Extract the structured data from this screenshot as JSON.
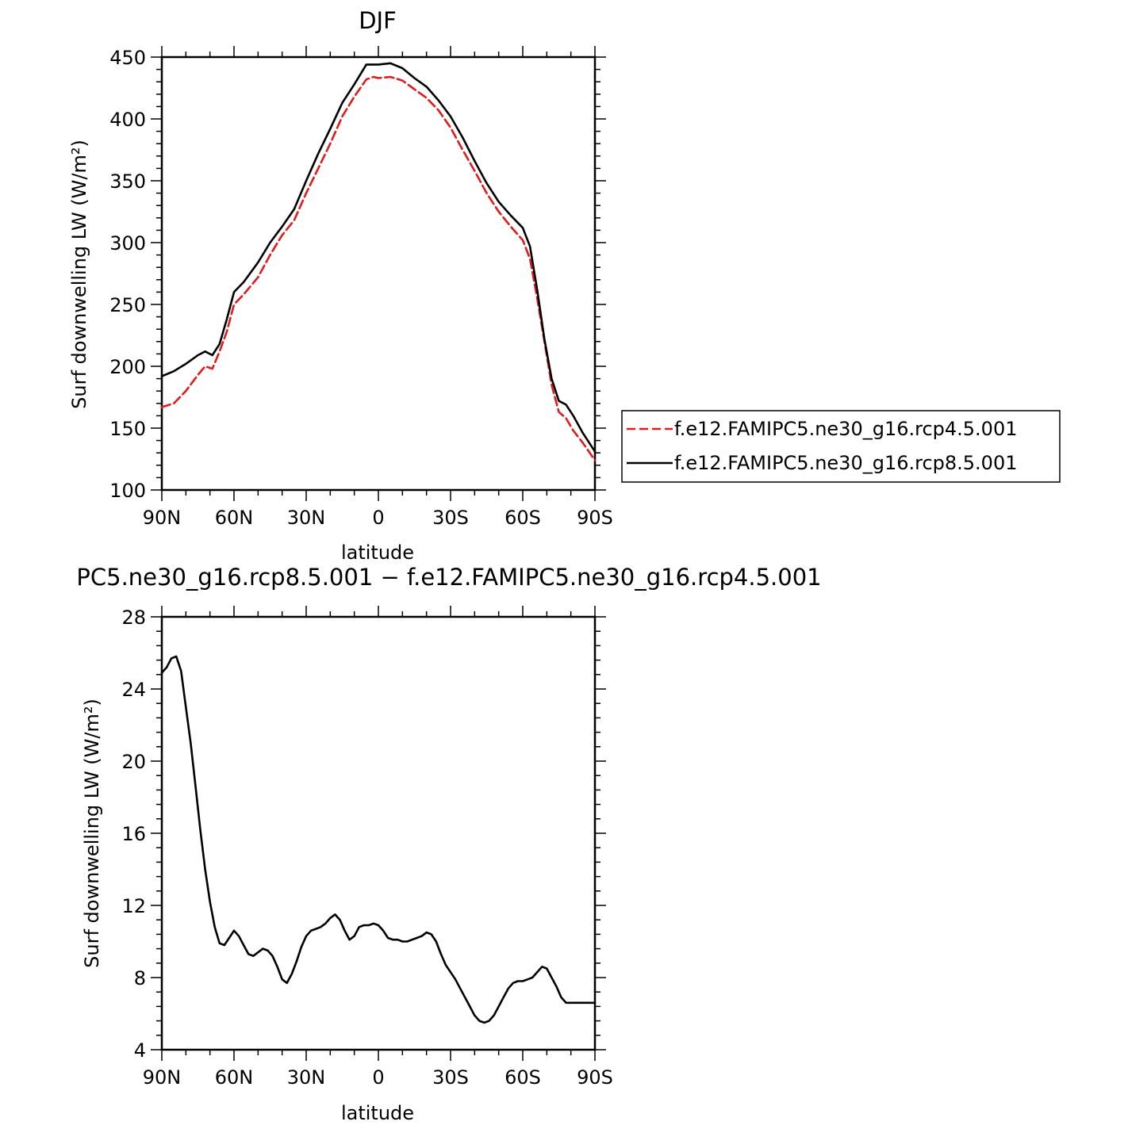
{
  "chart_data": [
    {
      "type": "line",
      "title": "DJF",
      "xlabel": "latitude",
      "ylabel": "Surf downwelling LW (W/m²)",
      "ylim": [
        100,
        450
      ],
      "yticks": [
        "100",
        "150",
        "200",
        "250",
        "300",
        "350",
        "400",
        "450"
      ],
      "xlim": [
        90,
        -90
      ],
      "xticks": [
        {
          "value": 90,
          "label": "90N"
        },
        {
          "value": 60,
          "label": "60N"
        },
        {
          "value": 30,
          "label": "30N"
        },
        {
          "value": 0,
          "label": "0"
        },
        {
          "value": -30,
          "label": "30S"
        },
        {
          "value": -60,
          "label": "60S"
        },
        {
          "value": -90,
          "label": "90S"
        }
      ],
      "legend": "right",
      "series": [
        {
          "name": "f.e12.FAMIPC5.ne30_g16.rcp4.5.001",
          "color": "#e31a1c",
          "dash": "dashed",
          "x": [
            90,
            85,
            80,
            75,
            72,
            69,
            66,
            63,
            60,
            56,
            50,
            45,
            40,
            35,
            30,
            25,
            20,
            15,
            10,
            5,
            2,
            0,
            -5,
            -10,
            -15,
            -20,
            -25,
            -30,
            -35,
            -40,
            -45,
            -50,
            -55,
            -60,
            -63,
            -66,
            -69,
            -72,
            -75,
            -78,
            -81,
            -85,
            -90
          ],
          "y": [
            167,
            170,
            180,
            193,
            200,
            198,
            212,
            228,
            250,
            258,
            272,
            290,
            306,
            318,
            340,
            360,
            380,
            402,
            418,
            432,
            434,
            433,
            434,
            431,
            424,
            417,
            407,
            393,
            375,
            358,
            340,
            325,
            313,
            302,
            287,
            255,
            220,
            185,
            163,
            158,
            148,
            138,
            124
          ]
        },
        {
          "name": "f.e12.FAMIPC5.ne30_g16.rcp8.5.001",
          "color": "#000000",
          "dash": "solid",
          "x": [
            90,
            85,
            80,
            75,
            72,
            69,
            66,
            63,
            60,
            56,
            50,
            45,
            40,
            35,
            30,
            25,
            20,
            15,
            10,
            5,
            2,
            0,
            -5,
            -10,
            -15,
            -20,
            -25,
            -30,
            -35,
            -40,
            -45,
            -50,
            -55,
            -60,
            -63,
            -66,
            -69,
            -72,
            -75,
            -78,
            -81,
            -85,
            -90
          ],
          "y": [
            192,
            196,
            202,
            209,
            212,
            209,
            218,
            238,
            260,
            268,
            284,
            300,
            313,
            327,
            350,
            372,
            392,
            413,
            428,
            444,
            444,
            444,
            445,
            441,
            433,
            426,
            415,
            402,
            385,
            366,
            348,
            333,
            322,
            312,
            297,
            262,
            222,
            190,
            172,
            169,
            160,
            146,
            131
          ]
        }
      ]
    },
    {
      "type": "line",
      "title": "PC5.ne30_g16.rcp8.5.001 − f.e12.FAMIPC5.ne30_g16.rcp4.5.001",
      "xlabel": "latitude",
      "ylabel": "Surf downwelling LW (W/m²)",
      "ylim": [
        4,
        28
      ],
      "yticks": [
        "4",
        "8",
        "12",
        "16",
        "20",
        "24",
        "28"
      ],
      "xlim": [
        90,
        -90
      ],
      "xticks": [
        {
          "value": 90,
          "label": "90N"
        },
        {
          "value": 60,
          "label": "60N"
        },
        {
          "value": 30,
          "label": "30N"
        },
        {
          "value": 0,
          "label": "0"
        },
        {
          "value": -30,
          "label": "30S"
        },
        {
          "value": -60,
          "label": "60S"
        },
        {
          "value": -90,
          "label": "90S"
        }
      ],
      "series": [
        {
          "color": "#000000",
          "dash": "solid",
          "x": [
            90,
            88,
            86,
            84,
            82,
            80,
            78,
            76,
            74,
            72,
            70,
            68,
            66,
            64,
            62,
            60,
            58,
            56,
            54,
            52,
            50,
            48,
            46,
            44,
            42,
            40,
            38,
            36,
            34,
            32,
            30,
            28,
            26,
            24,
            22,
            20,
            18,
            16,
            14,
            12,
            10,
            8,
            6,
            4,
            2,
            0,
            -2,
            -4,
            -6,
            -8,
            -10,
            -12,
            -14,
            -16,
            -18,
            -20,
            -22,
            -24,
            -26,
            -28,
            -30,
            -32,
            -34,
            -36,
            -38,
            -40,
            -42,
            -44,
            -46,
            -48,
            -50,
            -52,
            -54,
            -56,
            -58,
            -60,
            -62,
            -64,
            -66,
            -68,
            -70,
            -72,
            -74,
            -76,
            -78,
            -80,
            -82,
            -84,
            -86,
            -88,
            -90
          ],
          "y": [
            24.9,
            25.2,
            25.7,
            25.8,
            25.0,
            23.0,
            21.0,
            18.6,
            16.2,
            14.0,
            12.2,
            10.8,
            9.9,
            9.8,
            10.2,
            10.6,
            10.3,
            9.8,
            9.3,
            9.2,
            9.4,
            9.6,
            9.5,
            9.2,
            8.6,
            7.9,
            7.7,
            8.2,
            8.9,
            9.7,
            10.3,
            10.6,
            10.7,
            10.8,
            11.0,
            11.3,
            11.5,
            11.2,
            10.6,
            10.1,
            10.3,
            10.8,
            10.9,
            10.9,
            11.0,
            10.9,
            10.6,
            10.2,
            10.1,
            10.1,
            10.0,
            10.0,
            10.1,
            10.2,
            10.3,
            10.5,
            10.4,
            10.0,
            9.3,
            8.7,
            8.3,
            7.9,
            7.4,
            6.9,
            6.4,
            5.9,
            5.6,
            5.5,
            5.6,
            5.9,
            6.4,
            6.9,
            7.4,
            7.7,
            7.8,
            7.8,
            7.9,
            8.0,
            8.3,
            8.6,
            8.5,
            8.0,
            7.5,
            6.9,
            6.6,
            6.6,
            6.6,
            6.6,
            6.6,
            6.6,
            6.6
          ]
        }
      ]
    }
  ]
}
